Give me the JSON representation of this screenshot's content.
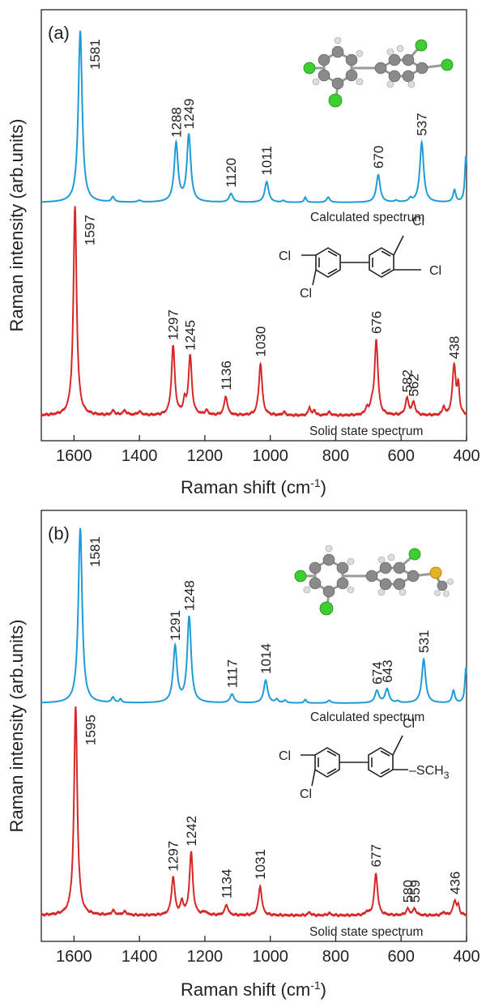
{
  "chart_data": [
    {
      "type": "line",
      "panel_label": "(a)",
      "xlabel": "Raman shift (cm",
      "xlabel_sup": "-1",
      "xlabel_end": ")",
      "ylabel": "Raman intensity (arb.units)",
      "xlim": [
        1700,
        400
      ],
      "x_reversed": true,
      "xticks": [
        1600,
        1400,
        1200,
        1000,
        800,
        600,
        400
      ],
      "grid": false,
      "series": [
        {
          "name": "Calculated spectrum",
          "color": "#1f9bd7",
          "peaks": [
            {
              "x": 1581,
              "label": "1581"
            },
            {
              "x": 1288,
              "label": "1288"
            },
            {
              "x": 1249,
              "label": "1249"
            },
            {
              "x": 1120,
              "label": "1120"
            },
            {
              "x": 1011,
              "label": "1011"
            },
            {
              "x": 670,
              "label": "670"
            },
            {
              "x": 537,
              "label": "537"
            }
          ]
        },
        {
          "name": "Solid state spectrum",
          "color": "#d62728",
          "peaks": [
            {
              "x": 1597,
              "label": "1597"
            },
            {
              "x": 1297,
              "label": "1297"
            },
            {
              "x": 1245,
              "label": "1245"
            },
            {
              "x": 1136,
              "label": "1136"
            },
            {
              "x": 1030,
              "label": "1030"
            },
            {
              "x": 676,
              "label": "676"
            },
            {
              "x": 582,
              "label": "582"
            },
            {
              "x": 562,
              "label": "562"
            },
            {
              "x": 438,
              "label": "438"
            }
          ]
        }
      ],
      "structure_labels": {
        "cl1": "Cl",
        "cl2": "Cl",
        "cl3": "Cl",
        "cl4": "Cl"
      }
    },
    {
      "type": "line",
      "panel_label": "(b)",
      "xlabel": "Raman shift (cm",
      "xlabel_sup": "-1",
      "xlabel_end": ")",
      "ylabel": "Raman intensity (arb.units)",
      "xlim": [
        1700,
        400
      ],
      "x_reversed": true,
      "xticks": [
        1600,
        1400,
        1200,
        1000,
        800,
        600,
        400
      ],
      "grid": false,
      "series": [
        {
          "name": "Calculated spectrum",
          "color": "#1f9bd7",
          "peaks": [
            {
              "x": 1581,
              "label": "1581"
            },
            {
              "x": 1291,
              "label": "1291"
            },
            {
              "x": 1248,
              "label": "1248"
            },
            {
              "x": 1117,
              "label": "1117"
            },
            {
              "x": 1014,
              "label": "1014"
            },
            {
              "x": 674,
              "label": "674"
            },
            {
              "x": 643,
              "label": "643"
            },
            {
              "x": 531,
              "label": "531"
            }
          ]
        },
        {
          "name": "Solid state spectrum",
          "color": "#d62728",
          "peaks": [
            {
              "x": 1595,
              "label": "1595"
            },
            {
              "x": 1297,
              "label": "1297"
            },
            {
              "x": 1242,
              "label": "1242"
            },
            {
              "x": 1134,
              "label": "1134"
            },
            {
              "x": 1031,
              "label": "1031"
            },
            {
              "x": 677,
              "label": "677"
            },
            {
              "x": 580,
              "label": "580"
            },
            {
              "x": 559,
              "label": "559"
            },
            {
              "x": 436,
              "label": "436"
            }
          ]
        }
      ],
      "structure_labels": {
        "cl1": "Cl",
        "cl2": "Cl",
        "cl3": "Cl",
        "sch3": "SCH",
        "sch3_sub": "3"
      }
    }
  ]
}
